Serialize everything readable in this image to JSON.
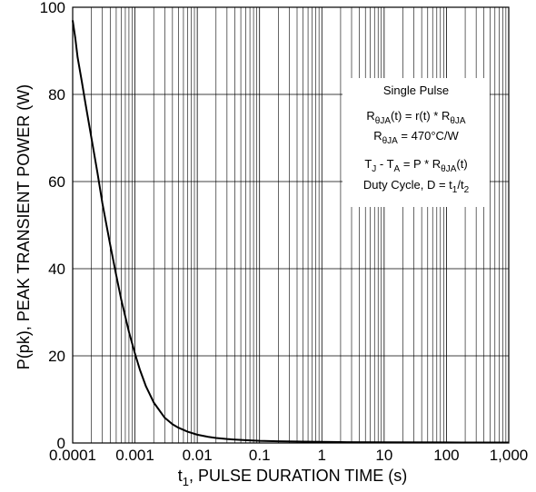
{
  "chart_data": {
    "type": "line",
    "xscale": "log",
    "grid": true,
    "xlim": [
      0.0001,
      1000
    ],
    "ylim": [
      0,
      100
    ],
    "xlabel_main": "t",
    "xlabel_sub": "1",
    "xlabel_rest": ", PULSE DURATION TIME (s)",
    "ylabel": "P(pk), PEAK TRANSIENT  POWER (W)",
    "x_ticks": [
      {
        "value": 0.0001,
        "label": "0.0001"
      },
      {
        "value": 0.001,
        "label": "0.001"
      },
      {
        "value": 0.01,
        "label": "0.01"
      },
      {
        "value": 0.1,
        "label": "0.1"
      },
      {
        "value": 1,
        "label": "1"
      },
      {
        "value": 10,
        "label": "10"
      },
      {
        "value": 100,
        "label": "100"
      },
      {
        "value": 1000,
        "label": "1,000"
      }
    ],
    "y_ticks": [
      {
        "value": 0,
        "label": "0"
      },
      {
        "value": 20,
        "label": "20"
      },
      {
        "value": 40,
        "label": "40"
      },
      {
        "value": 60,
        "label": "60"
      },
      {
        "value": 80,
        "label": "80"
      },
      {
        "value": 100,
        "label": "100"
      }
    ],
    "series": [
      {
        "color": "#000000",
        "x": [
          0.0001,
          0.00011,
          0.00012,
          0.00014,
          0.00016,
          0.0002,
          0.00025,
          0.0003,
          0.0004,
          0.0005,
          0.0006,
          0.0008,
          0.001,
          0.0012,
          0.0015,
          0.002,
          0.003,
          0.004,
          0.005,
          0.007,
          0.01,
          0.015,
          0.02,
          0.03,
          0.05,
          0.1,
          0.2,
          0.5,
          1,
          2,
          10,
          100,
          1000
        ],
        "y": [
          97,
          93,
          88.5,
          83,
          78,
          70,
          62,
          55,
          45.5,
          38.5,
          33,
          25.5,
          20.5,
          16.8,
          13,
          9.3,
          5.8,
          4.3,
          3.5,
          2.6,
          1.9,
          1.4,
          1.15,
          0.9,
          0.7,
          0.5,
          0.4,
          0.3,
          0.25,
          0.2,
          0.15,
          0.12,
          0.1
        ]
      }
    ],
    "annotation": {
      "title": "Single Pulse",
      "line1": {
        "a": "R",
        "a_sub": "θJA",
        "b": "(t) = r(t) * R",
        "b_sub": "θJA"
      },
      "line2": {
        "a": "R",
        "a_sub": "θJA",
        "b": " = 470°C/W"
      },
      "line3": {
        "a": "T",
        "a_sub": "J",
        "b": " - T",
        "b_sub": "A",
        "c": " = P * R",
        "c_sub": "θJA",
        "d": "(t)"
      },
      "line4": {
        "a": "Duty Cycle, D = t",
        "a_sub": "1",
        "b": "/t",
        "b_sub": "2"
      }
    }
  }
}
